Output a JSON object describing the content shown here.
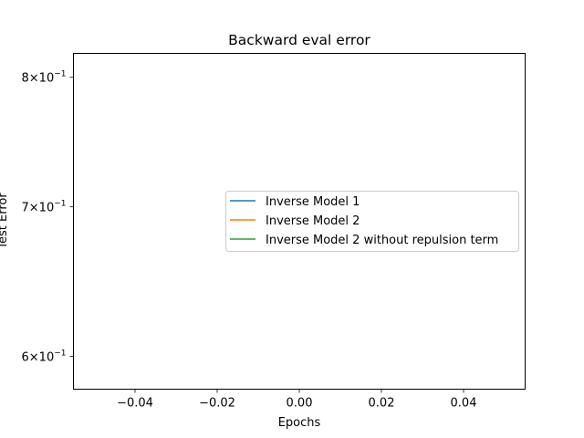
{
  "chart_data": {
    "type": "line",
    "title": "Backward eval error",
    "xlabel": "Epochs",
    "ylabel": "Test Error",
    "xlim": [
      -0.055,
      0.055
    ],
    "ylim": [
      0.58,
      0.82
    ],
    "yscale": "log",
    "x_ticks": [
      -0.04,
      -0.02,
      0.0,
      0.02,
      0.04
    ],
    "x_tick_labels": [
      "−0.04",
      "−0.02",
      "0.00",
      "0.02",
      "0.04"
    ],
    "y_ticks": [
      {
        "value": 0.8,
        "mantissa": "8",
        "times": "×",
        "base": "10",
        "exponent": "−1"
      },
      {
        "value": 0.7,
        "mantissa": "7",
        "times": "×",
        "base": "10",
        "exponent": "−1"
      },
      {
        "value": 0.6,
        "mantissa": "6",
        "times": "×",
        "base": "10",
        "exponent": "−1"
      }
    ],
    "grid": false,
    "legend_position": "center-right",
    "series": [
      {
        "name": "Inverse Model 1",
        "color": "#1f77b4",
        "x": [],
        "y": []
      },
      {
        "name": "Inverse Model 2",
        "color": "#ff7f0e",
        "x": [],
        "y": []
      },
      {
        "name": "Inverse Model 2 without repulsion term",
        "color": "#2ca02c",
        "x": [],
        "y": []
      }
    ]
  }
}
